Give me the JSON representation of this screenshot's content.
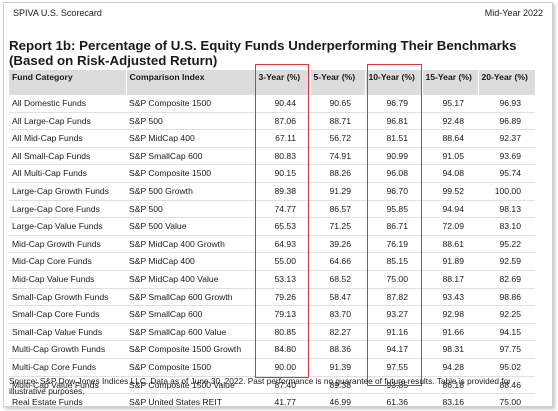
{
  "header": {
    "left": "SPIVA U.S. Scorecard",
    "right": "Mid-Year 2022"
  },
  "title": "Report 1b: Percentage of U.S. Equity Funds Underperforming Their Benchmarks (Based on Risk-Adjusted Return)",
  "table": {
    "columns": [
      "Fund Category",
      "Comparison Index",
      "3-Year (%)",
      "5-Year (%)",
      "10-Year (%)",
      "15-Year (%)",
      "20-Year (%)"
    ],
    "rows": [
      [
        "All Domestic Funds",
        "S&P Composite 1500",
        "90.44",
        "90.65",
        "96.79",
        "95.17",
        "96.93"
      ],
      [
        "All Large-Cap Funds",
        "S&P 500",
        "87.06",
        "88.71",
        "96.81",
        "92.48",
        "96.89"
      ],
      [
        "All Mid-Cap Funds",
        "S&P MidCap 400",
        "67.11",
        "56.72",
        "81.51",
        "88.64",
        "92.37"
      ],
      [
        "All Small-Cap Funds",
        "S&P SmallCap 600",
        "80.83",
        "74.91",
        "90.99",
        "91.05",
        "93.69"
      ],
      [
        "All Multi-Cap Funds",
        "S&P Composite 1500",
        "90.15",
        "88.26",
        "96.08",
        "94.08",
        "95.74"
      ],
      [
        "Large-Cap Growth Funds",
        "S&P 500 Growth",
        "89.38",
        "91.29",
        "96.70",
        "99.52",
        "100.00"
      ],
      [
        "Large-Cap Core Funds",
        "S&P 500",
        "74.77",
        "86.57",
        "95.85",
        "94.94",
        "98.13"
      ],
      [
        "Large-Cap Value Funds",
        "S&P 500 Value",
        "65.53",
        "71.25",
        "86.71",
        "72.09",
        "83.10"
      ],
      [
        "Mid-Cap Growth Funds",
        "S&P MidCap 400 Growth",
        "64.93",
        "39.26",
        "76.19",
        "88.61",
        "95.22"
      ],
      [
        "Mid-Cap Core Funds",
        "S&P MidCap 400",
        "55.00",
        "64.66",
        "85.15",
        "91.89",
        "92.59"
      ],
      [
        "Mid-Cap Value Funds",
        "S&P MidCap 400 Value",
        "53.13",
        "68.52",
        "75.00",
        "88.17",
        "82.69"
      ],
      [
        "Small-Cap Growth Funds",
        "S&P SmallCap 600 Growth",
        "79.26",
        "58.47",
        "87.82",
        "93.43",
        "98.86"
      ],
      [
        "Small-Cap Core Funds",
        "S&P SmallCap 600",
        "79.13",
        "83.70",
        "93.27",
        "92.98",
        "92.25"
      ],
      [
        "Small-Cap Value Funds",
        "S&P SmallCap 600 Value",
        "80.85",
        "82.27",
        "91.16",
        "91.66",
        "94.15"
      ],
      [
        "Multi-Cap Growth Funds",
        "S&P Composite 1500 Growth",
        "84.80",
        "88.36",
        "94.17",
        "98.31",
        "97.75"
      ],
      [
        "Multi-Cap Core Funds",
        "S&P Composite 1500",
        "90.00",
        "91.39",
        "97.55",
        "94.28",
        "95.02"
      ],
      [
        "Multi-Cap Value Funds",
        "S&P Composite 1500 Value",
        "87.40",
        "89.38",
        "93.85",
        "86.18",
        "88.46"
      ],
      [
        "Real Estate Funds",
        "S&P United States REIT",
        "41.77",
        "46.99",
        "61.36",
        "83.16",
        "75.00"
      ]
    ]
  },
  "source": "Source: S&P Dow Jones Indices LLC.  Data as of June 30, 2022.  Past performance is no guarantee of future results.  Table is provided for illustrative purposes.",
  "colors": {
    "header_bg": "#dcdcdc",
    "highlight": "#d9363e"
  }
}
